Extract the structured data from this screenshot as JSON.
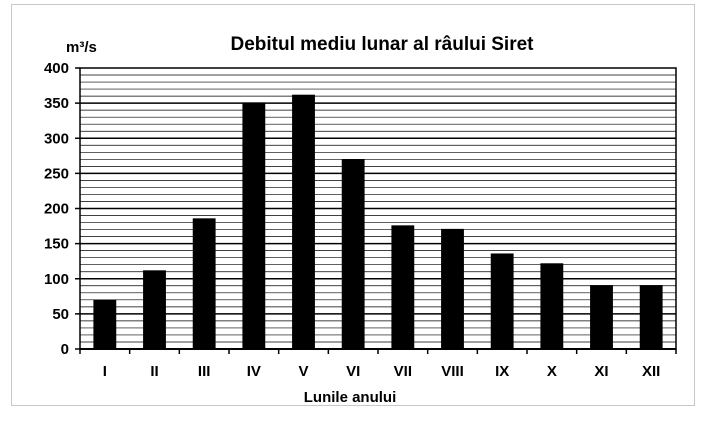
{
  "chart_data": {
    "type": "bar",
    "title": "Debitul mediu lunar al râului Siret",
    "ylabel": "m³/s",
    "xlabel": "Lunile anului",
    "categories": [
      "I",
      "II",
      "III",
      "IV",
      "V",
      "VI",
      "VII",
      "VIII",
      "IX",
      "X",
      "XI",
      "XII"
    ],
    "values": [
      70,
      112,
      186,
      351,
      362,
      270,
      176,
      171,
      136,
      122,
      91,
      91
    ],
    "ylim": [
      0,
      400
    ],
    "yticks": [
      0,
      50,
      100,
      150,
      200,
      250,
      300,
      350,
      400
    ],
    "grid": true,
    "bar_color": "#000000",
    "grid_color": "#000000"
  }
}
